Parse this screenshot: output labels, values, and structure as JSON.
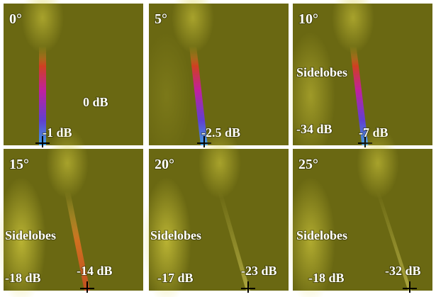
{
  "panels": [
    {
      "angle": "0°",
      "labels": [
        "0 dB",
        "-1 dB"
      ]
    },
    {
      "angle": "5°",
      "labels": [
        "-2.5 dB"
      ]
    },
    {
      "angle": "10°",
      "labels": [
        "Sidelobes",
        "-34 dB",
        "-7 dB"
      ]
    },
    {
      "angle": "15°",
      "labels": [
        "Sidelobes",
        "-18 dB",
        "-14 dB"
      ]
    },
    {
      "angle": "20°",
      "labels": [
        "Sidelobes",
        "-17 dB",
        "-23 dB"
      ]
    },
    {
      "angle": "25°",
      "labels": [
        "Sidelobes",
        "-18 dB",
        "-32 dB"
      ]
    }
  ]
}
